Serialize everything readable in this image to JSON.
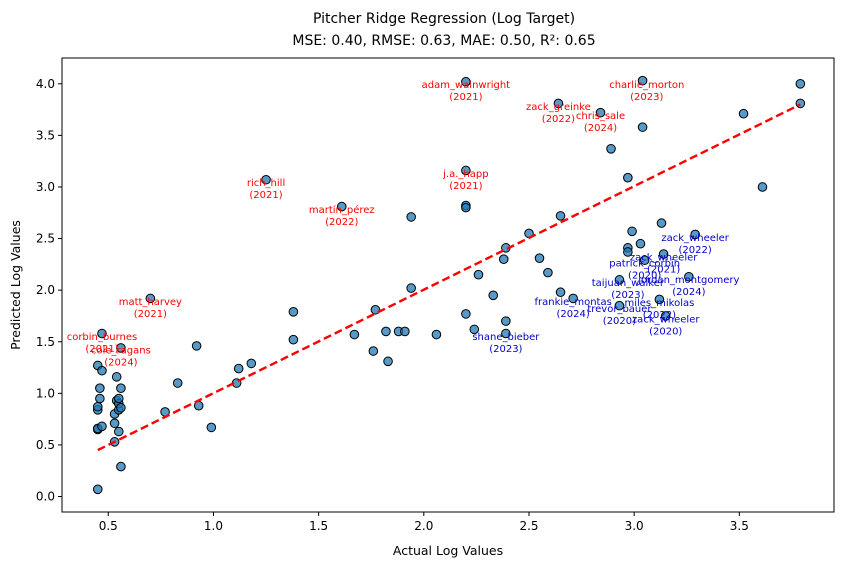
{
  "chart_data": {
    "type": "scatter",
    "title_line1": "Pitcher Ridge Regression (Log Target)",
    "title_line2": "MSE: 0.40, RMSE: 0.63, MAE: 0.50, R²: 0.65",
    "xlabel": "Actual Log Values",
    "ylabel": "Predicted Log Values",
    "xlim": [
      0.28,
      3.95
    ],
    "ylim": [
      -0.15,
      4.25
    ],
    "xticks": [
      0.5,
      1.0,
      1.5,
      2.0,
      2.5,
      3.0,
      3.5
    ],
    "xtick_labels": [
      "0.5",
      "1.0",
      "1.5",
      "2.0",
      "2.5",
      "3.0",
      "3.5"
    ],
    "yticks": [
      0.0,
      0.5,
      1.0,
      1.5,
      2.0,
      2.5,
      3.0,
      3.5,
      4.0
    ],
    "ytick_labels": [
      "0.0",
      "0.5",
      "1.0",
      "1.5",
      "2.0",
      "2.5",
      "3.0",
      "3.5",
      "4.0"
    ],
    "point_color": "#1f77b4",
    "regression_line": {
      "color": "#ff0000",
      "x": [
        0.45,
        3.79
      ],
      "y": [
        0.45,
        3.8
      ]
    },
    "points": [
      [
        0.45,
        0.07
      ],
      [
        0.45,
        0.65
      ],
      [
        0.45,
        0.66
      ],
      [
        0.45,
        0.84
      ],
      [
        0.45,
        0.87
      ],
      [
        0.45,
        1.27
      ],
      [
        0.46,
        0.95
      ],
      [
        0.46,
        1.05
      ],
      [
        0.47,
        0.68
      ],
      [
        0.47,
        1.22
      ],
      [
        0.47,
        1.58
      ],
      [
        0.53,
        0.53
      ],
      [
        0.53,
        0.71
      ],
      [
        0.53,
        0.8
      ],
      [
        0.54,
        0.93
      ],
      [
        0.54,
        1.16
      ],
      [
        0.55,
        0.63
      ],
      [
        0.55,
        0.84
      ],
      [
        0.55,
        0.9
      ],
      [
        0.55,
        0.95
      ],
      [
        0.56,
        0.29
      ],
      [
        0.56,
        0.86
      ],
      [
        0.56,
        1.05
      ],
      [
        0.56,
        1.44
      ],
      [
        0.7,
        1.92
      ],
      [
        0.77,
        0.82
      ],
      [
        0.83,
        1.1
      ],
      [
        0.92,
        1.46
      ],
      [
        0.93,
        0.88
      ],
      [
        0.99,
        0.67
      ],
      [
        1.11,
        1.1
      ],
      [
        1.12,
        1.24
      ],
      [
        1.18,
        1.29
      ],
      [
        1.25,
        3.07
      ],
      [
        1.38,
        1.52
      ],
      [
        1.38,
        1.79
      ],
      [
        1.61,
        2.81
      ],
      [
        1.67,
        1.57
      ],
      [
        1.76,
        1.41
      ],
      [
        1.77,
        1.81
      ],
      [
        1.82,
        1.6
      ],
      [
        1.83,
        1.31
      ],
      [
        1.88,
        1.6
      ],
      [
        1.91,
        1.6
      ],
      [
        1.94,
        2.71
      ],
      [
        1.94,
        2.02
      ],
      [
        2.06,
        1.57
      ],
      [
        2.2,
        4.02
      ],
      [
        2.2,
        3.16
      ],
      [
        2.2,
        2.82
      ],
      [
        2.2,
        2.8
      ],
      [
        2.2,
        1.77
      ],
      [
        2.24,
        1.62
      ],
      [
        2.26,
        2.15
      ],
      [
        2.33,
        1.95
      ],
      [
        2.38,
        2.3
      ],
      [
        2.39,
        2.41
      ],
      [
        2.39,
        1.7
      ],
      [
        2.39,
        1.58
      ],
      [
        2.5,
        2.55
      ],
      [
        2.55,
        2.31
      ],
      [
        2.59,
        2.17
      ],
      [
        2.64,
        3.81
      ],
      [
        2.65,
        2.72
      ],
      [
        2.65,
        1.98
      ],
      [
        2.71,
        1.92
      ],
      [
        2.84,
        3.72
      ],
      [
        2.89,
        3.37
      ],
      [
        2.93,
        2.1
      ],
      [
        2.97,
        3.09
      ],
      [
        2.97,
        2.41
      ],
      [
        2.97,
        2.37
      ],
      [
        2.99,
        2.57
      ],
      [
        3.03,
        2.45
      ],
      [
        3.04,
        3.58
      ],
      [
        3.04,
        4.03
      ],
      [
        3.05,
        2.29
      ],
      [
        3.13,
        2.65
      ],
      [
        3.26,
        2.13
      ],
      [
        3.52,
        3.71
      ],
      [
        3.61,
        3.0
      ],
      [
        3.79,
        4.0
      ],
      [
        3.79,
        3.81
      ],
      [
        3.29,
        2.54
      ],
      [
        3.14,
        2.35
      ],
      [
        3.12,
        1.91
      ],
      [
        3.15,
        1.75
      ],
      [
        2.93,
        1.85
      ]
    ],
    "annotations_red": [
      {
        "l1": "adam_wainwright",
        "l2": "(2021)",
        "x": 2.2,
        "y": 3.9
      },
      {
        "l1": "charlie_morton",
        "l2": "(2023)",
        "x": 3.06,
        "y": 3.9
      },
      {
        "l1": "zack_greinke",
        "l2": "(2022)",
        "x": 2.64,
        "y": 3.69
      },
      {
        "l1": "chris_sale",
        "l2": "(2024)",
        "x": 2.84,
        "y": 3.6
      },
      {
        "l1": "rich_hill",
        "l2": "(2021)",
        "x": 1.25,
        "y": 2.95
      },
      {
        "l1": "j.a._happ",
        "l2": "(2021)",
        "x": 2.2,
        "y": 3.04
      },
      {
        "l1": "martín_pérez",
        "l2": "(2022)",
        "x": 1.61,
        "y": 2.69
      },
      {
        "l1": "matt_harvey",
        "l2": "(2021)",
        "x": 0.7,
        "y": 1.8
      },
      {
        "l1": "corbin_burnes",
        "l2": "(2021)",
        "x": 0.47,
        "y": 1.46
      },
      {
        "l1": "cole_ragans",
        "l2": "(2024)",
        "x": 0.56,
        "y": 1.33
      }
    ],
    "annotations_blue": [
      {
        "l1": "zack_wheeler",
        "l2": "(2022)",
        "x": 3.29,
        "y": 2.42
      },
      {
        "l1": "zack_wheeler",
        "l2": "(2021)",
        "x": 3.14,
        "y": 2.23
      },
      {
        "l1": "patrick_corbin",
        "l2": "(2020)",
        "x": 3.05,
        "y": 2.17
      },
      {
        "l1": "taijuan_walker",
        "l2": "(2023)",
        "x": 2.97,
        "y": 1.98
      },
      {
        "l1": "jordan_montgomery",
        "l2": "(2024)",
        "x": 3.26,
        "y": 2.01
      },
      {
        "l1": "frankie_montas",
        "l2": "(2024)",
        "x": 2.71,
        "y": 1.8
      },
      {
        "l1": "miles_mikolas",
        "l2": "(2022)",
        "x": 3.12,
        "y": 1.79
      },
      {
        "l1": "trevor_bauer",
        "l2": "(2020)",
        "x": 2.93,
        "y": 1.73
      },
      {
        "l1": "zack_wheeler",
        "l2": "(2020)",
        "x": 3.15,
        "y": 1.63
      },
      {
        "l1": "shane_bieber",
        "l2": "(2023)",
        "x": 2.39,
        "y": 1.46
      }
    ]
  }
}
